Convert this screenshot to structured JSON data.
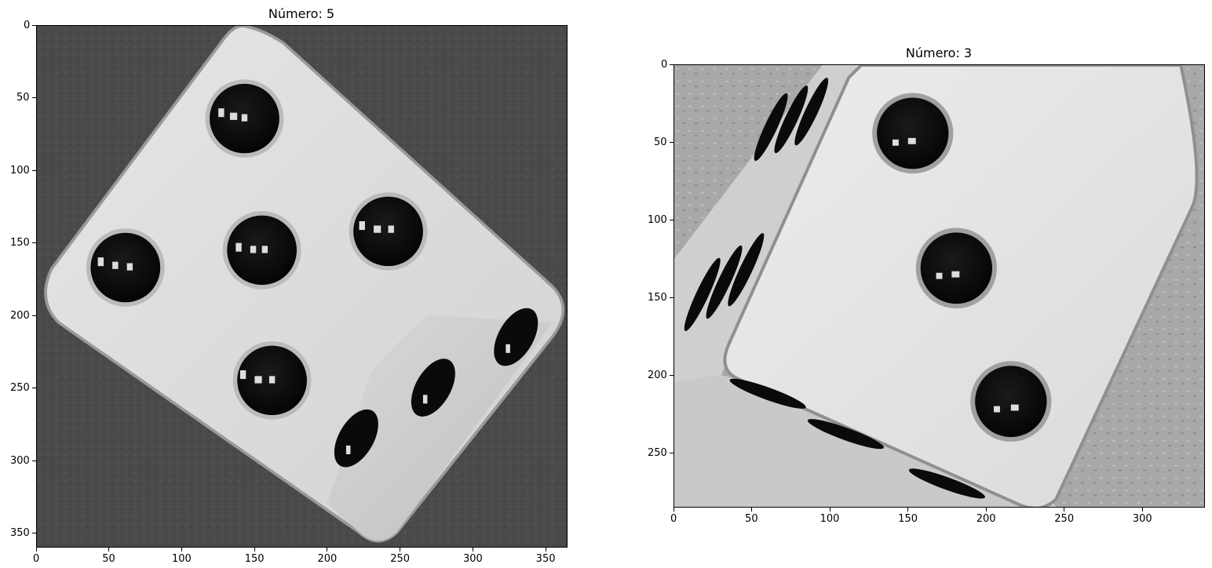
{
  "figure": {
    "panels": [
      {
        "title": "Número: 5",
        "image": "five-pip-die-icon",
        "x_ticks": [
          "0",
          "50",
          "100",
          "150",
          "200",
          "250",
          "300",
          "350"
        ],
        "y_ticks": [
          "0",
          "50",
          "100",
          "150",
          "200",
          "250",
          "300",
          "350"
        ],
        "x_max": 365,
        "y_max": 360
      },
      {
        "title": "Número: 3",
        "image": "three-pip-die-icon",
        "x_ticks": [
          "0",
          "50",
          "100",
          "150",
          "200",
          "250",
          "300"
        ],
        "y_ticks": [
          "0",
          "50",
          "100",
          "150",
          "200",
          "250"
        ],
        "x_max": 340,
        "y_max": 285
      }
    ]
  }
}
